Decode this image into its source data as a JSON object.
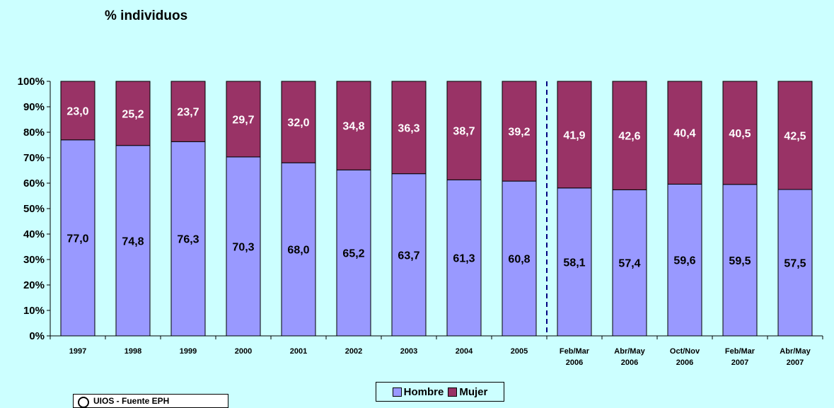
{
  "chart_data": {
    "type": "bar",
    "stacked": true,
    "percent": true,
    "title": "% individuos",
    "categories": [
      "1997",
      "1998",
      "1999",
      "2000",
      "2001",
      "2002",
      "2003",
      "2004",
      "2005",
      "Feb/Mar 2006",
      "Abr/May 2006",
      "Oct/Nov 2006",
      "Feb/Mar 2007",
      "Abr/May 2007"
    ],
    "series": [
      {
        "name": "Hombre",
        "color": "#9999ff",
        "values": [
          77.0,
          74.8,
          76.3,
          70.3,
          68.0,
          65.2,
          63.7,
          61.3,
          60.8,
          58.1,
          57.4,
          59.6,
          59.5,
          57.5
        ]
      },
      {
        "name": "Mujer",
        "color": "#993366",
        "values": [
          23.0,
          25.2,
          23.7,
          29.7,
          32.0,
          34.8,
          36.3,
          38.7,
          39.2,
          41.9,
          42.6,
          40.4,
          40.5,
          42.5
        ]
      }
    ],
    "data_labels": {
      "Hombre": [
        "77,0",
        "74,8",
        "76,3",
        "70,3",
        "68,0",
        "65,2",
        "63,7",
        "61,3",
        "60,8",
        "58,1",
        "57,4",
        "59,6",
        "59,5",
        "57,5"
      ],
      "Mujer": [
        "23,0",
        "25,2",
        "23,7",
        "29,7",
        "32,0",
        "34,8",
        "36,3",
        "38,7",
        "39,2",
        "41,9",
        "42,6",
        "40,4",
        "40,5",
        "42,5"
      ]
    },
    "ylim": [
      0,
      100
    ],
    "yticks": [
      "0%",
      "10%",
      "20%",
      "30%",
      "40%",
      "50%",
      "60%",
      "70%",
      "80%",
      "90%",
      "100%"
    ],
    "xtick_lines": [
      [
        "1997"
      ],
      [
        "1998"
      ],
      [
        "1999"
      ],
      [
        "2000"
      ],
      [
        "2001"
      ],
      [
        "2002"
      ],
      [
        "2003"
      ],
      [
        "2004"
      ],
      [
        "2005"
      ],
      [
        "Feb/Mar",
        "2006"
      ],
      [
        "Abr/May",
        "2006"
      ],
      [
        "Oct/Nov",
        "2006"
      ],
      [
        "Feb/Mar",
        "2007"
      ],
      [
        "Abr/May",
        "2007"
      ]
    ],
    "separator_after_category": "2005",
    "legend_position": "bottom",
    "grid": false
  },
  "source_box": {
    "text": "UIOS - Fuente EPH"
  }
}
